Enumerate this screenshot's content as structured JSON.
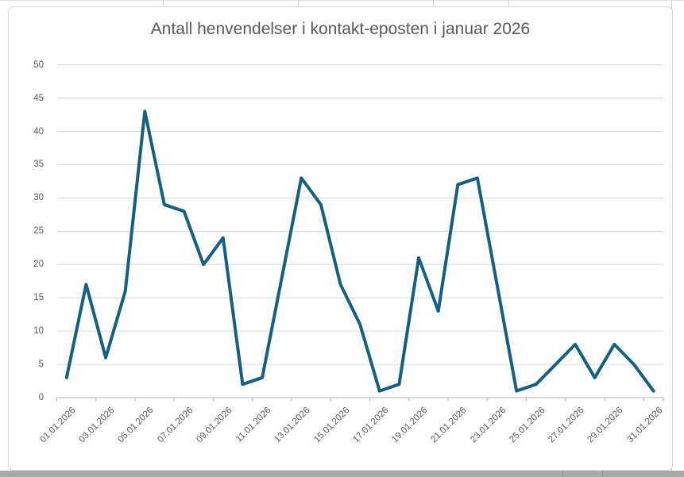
{
  "chart_data": {
    "type": "line",
    "title": "Antall henvendelser i kontakt-eposten i januar 2026",
    "x": [
      "01.01.2026",
      "02.01.2026",
      "03.01.2026",
      "04.01.2026",
      "05.01.2026",
      "06.01.2026",
      "07.01.2026",
      "08.01.2026",
      "09.01.2026",
      "10.01.2026",
      "11.01.2026",
      "12.01.2026",
      "13.01.2026",
      "14.01.2026",
      "15.01.2026",
      "16.01.2026",
      "17.01.2026",
      "18.01.2026",
      "19.01.2026",
      "20.01.2026",
      "21.01.2026",
      "22.01.2026",
      "23.01.2026",
      "24.01.2026",
      "25.01.2026",
      "26.01.2026",
      "27.01.2026",
      "28.01.2026",
      "29.01.2026",
      "30.01.2026",
      "31.01.2026"
    ],
    "values": [
      3,
      17,
      6,
      16,
      43,
      29,
      28,
      20,
      24,
      2,
      3,
      18,
      33,
      29,
      17,
      11,
      1,
      2,
      21,
      13,
      32,
      33,
      17,
      1,
      2,
      5,
      8,
      3,
      8,
      5,
      1
    ],
    "x_tick_labels": [
      "01.01.2026",
      "03.01.2026",
      "05.01.2026",
      "07.01.2026",
      "09.01.2026",
      "11.01.2026",
      "13.01.2026",
      "15.01.2026",
      "17.01.2026",
      "19.01.2026",
      "21.01.2026",
      "23.01.2026",
      "25.01.2026",
      "27.01.2026",
      "29.01.2026",
      "31.01.2026"
    ],
    "y_ticks": [
      0,
      5,
      10,
      15,
      20,
      25,
      30,
      35,
      40,
      45,
      50
    ],
    "ylim": [
      0,
      50
    ],
    "grid": true,
    "legend": "none",
    "line_color": "#156082",
    "gridline_color": "#d9d9d9",
    "axis_color": "#bfbfbf",
    "text_color": "#595959"
  }
}
